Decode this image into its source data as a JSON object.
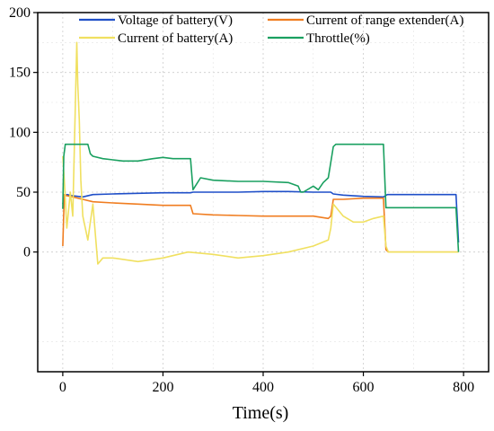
{
  "chart_data": {
    "type": "line",
    "title": "",
    "xlabel": "Time(s)",
    "ylabel": "",
    "xlim": [
      -50,
      850
    ],
    "ylim": [
      -100,
      200
    ],
    "x_ticks": [
      0,
      200,
      400,
      600,
      800
    ],
    "y_ticks": [
      0,
      50,
      100,
      150,
      200
    ],
    "grid": true,
    "legend_position": "top",
    "series": [
      {
        "name": "Voltage of battery(V)",
        "color": "#1f4fc8",
        "x": [
          0,
          3,
          8,
          20,
          40,
          60,
          100,
          150,
          200,
          255,
          260,
          300,
          350,
          400,
          450,
          500,
          520,
          535,
          540,
          560,
          600,
          640,
          648,
          655,
          700,
          750,
          785,
          790
        ],
        "y": [
          40,
          46,
          48,
          47,
          46,
          48,
          48.5,
          49,
          49.5,
          49.5,
          50,
          50,
          50,
          50.5,
          50.5,
          50,
          50,
          50,
          48.5,
          47.5,
          46.5,
          46,
          48,
          48,
          48,
          48,
          48,
          8
        ]
      },
      {
        "name": "Current of range extender(A)",
        "color": "#f07d20",
        "x": [
          0,
          3,
          8,
          20,
          40,
          60,
          100,
          150,
          200,
          255,
          260,
          300,
          350,
          400,
          450,
          500,
          530,
          535,
          540,
          560,
          600,
          640,
          645,
          650,
          700,
          750,
          790
        ],
        "y": [
          5,
          48,
          47,
          46,
          44,
          42,
          41,
          40,
          39,
          39,
          32,
          31,
          30.5,
          30,
          30,
          30,
          28,
          30,
          44,
          44,
          45,
          45,
          2,
          0,
          0,
          0,
          0
        ]
      },
      {
        "name": "Current of battery(A)",
        "color": "#f0e060",
        "x": [
          0,
          3,
          8,
          15,
          20,
          25,
          28,
          30,
          33,
          36,
          40,
          45,
          50,
          55,
          60,
          70,
          80,
          100,
          150,
          200,
          250,
          300,
          350,
          400,
          450,
          500,
          530,
          535,
          540,
          560,
          580,
          600,
          620,
          640,
          645,
          650,
          700,
          750,
          790
        ],
        "y": [
          80,
          60,
          20,
          50,
          30,
          120,
          175,
          140,
          110,
          60,
          30,
          20,
          10,
          25,
          40,
          -10,
          -5,
          -5,
          -8,
          -5,
          0,
          -2,
          -5,
          -3,
          0,
          5,
          10,
          20,
          40,
          30,
          25,
          25,
          28,
          30,
          5,
          0,
          0,
          0,
          0
        ]
      },
      {
        "name": "Throttle(%)",
        "color": "#1aa060",
        "x": [
          0,
          2,
          5,
          20,
          40,
          50,
          55,
          60,
          80,
          100,
          120,
          150,
          180,
          200,
          220,
          240,
          255,
          260,
          275,
          300,
          350,
          400,
          450,
          470,
          475,
          480,
          500,
          510,
          520,
          530,
          535,
          540,
          545,
          560,
          600,
          640,
          645,
          650,
          700,
          750,
          785,
          790
        ],
        "y": [
          36,
          80,
          90,
          90,
          90,
          90,
          82,
          80,
          78,
          77,
          76,
          76,
          78,
          79,
          78,
          78,
          78,
          52,
          62,
          60,
          59,
          59,
          58,
          55,
          50,
          50,
          55,
          52,
          58,
          62,
          75,
          88,
          90,
          90,
          90,
          90,
          37,
          37,
          37,
          37,
          37,
          0
        ]
      }
    ]
  }
}
